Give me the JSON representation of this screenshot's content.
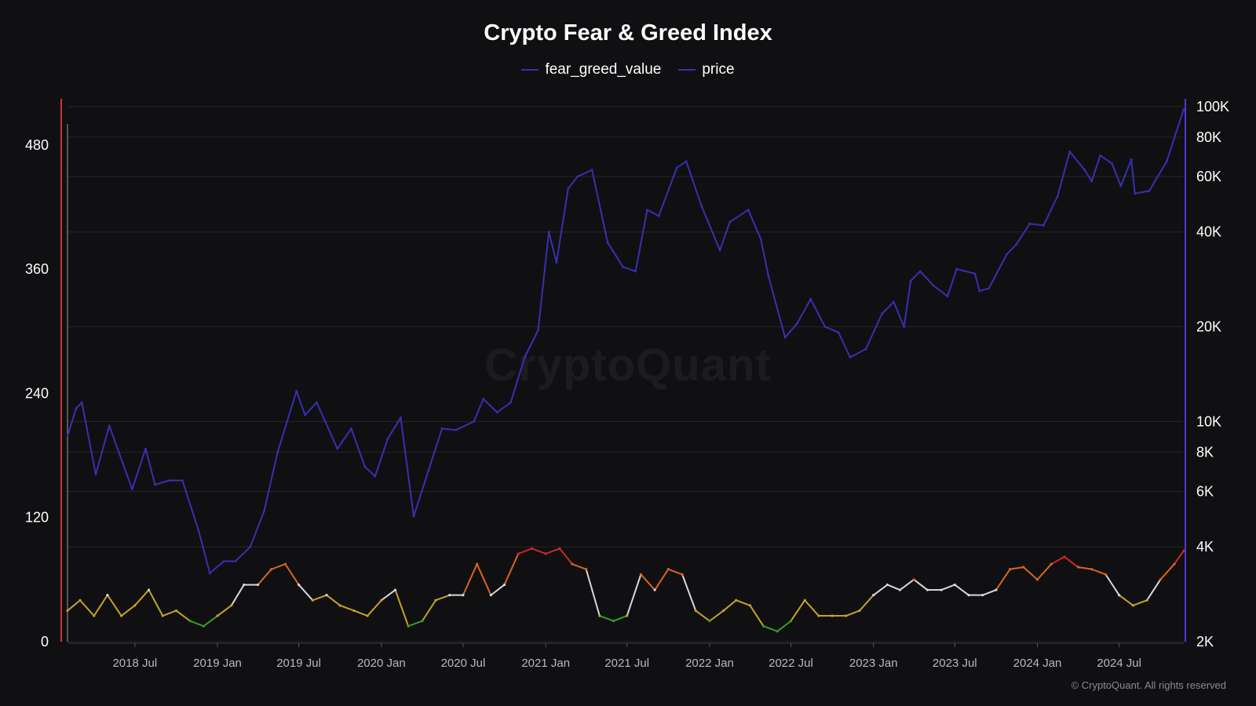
{
  "title": "Crypto Fear & Greed Index",
  "watermark": "CryptoQuant",
  "copyright": "© CryptoQuant. All rights reserved",
  "colors": {
    "background": "#101013",
    "price_line": "#3a2fb0",
    "left_axis": "#d23535",
    "right_axis": "#4a3ad0",
    "gridline": "#26262b",
    "fear_greed_extreme_fear": "#3a9a2a",
    "fear_greed_fear": "#c6a228",
    "fear_greed_neutral": "#d8d8dc",
    "fear_greed_greed": "#d8651e",
    "fear_greed_extreme_greed": "#c9282c"
  },
  "chart_data": {
    "type": "line",
    "x_range": [
      "2018-02-01",
      "2024-11-22"
    ],
    "x_tick_labels": [
      "2018 Jul",
      "2019 Jan",
      "2019 Jul",
      "2020 Jan",
      "2020 Jul",
      "2021 Jan",
      "2021 Jul",
      "2022 Jan",
      "2022 Jul",
      "2023 Jan",
      "2023 Jul",
      "2024 Jan",
      "2024 Jul"
    ],
    "x_tick_dates": [
      "2018-07-01",
      "2019-01-01",
      "2019-07-01",
      "2020-01-01",
      "2020-07-01",
      "2021-01-01",
      "2021-07-01",
      "2022-01-01",
      "2022-07-01",
      "2023-01-01",
      "2023-07-01",
      "2024-01-01",
      "2024-07-01"
    ],
    "y_left": {
      "ticks": [
        0,
        120,
        240,
        360,
        480
      ],
      "tick_labels": [
        "0",
        "120",
        "240",
        "360",
        "480"
      ],
      "range": [
        0,
        517
      ]
    },
    "y_right": {
      "scale": "log",
      "ticks": [
        2000,
        4000,
        6000,
        8000,
        10000,
        20000,
        40000,
        60000,
        80000,
        100000
      ],
      "tick_labels": [
        "2K",
        "4K",
        "6K",
        "8K",
        "10K",
        "20K",
        "40K",
        "60K",
        "80K",
        "100K"
      ],
      "range": [
        2000,
        100000
      ]
    },
    "legend": {
      "placement": "top-center"
    },
    "grid": "horizontal",
    "series": [
      {
        "name": "fear_greed_value",
        "axis": "left",
        "points": [
          [
            "2018-02-01",
            30
          ],
          [
            "2018-03-01",
            40
          ],
          [
            "2018-04-01",
            25
          ],
          [
            "2018-05-01",
            45
          ],
          [
            "2018-06-01",
            25
          ],
          [
            "2018-07-01",
            35
          ],
          [
            "2018-08-01",
            50
          ],
          [
            "2018-09-01",
            25
          ],
          [
            "2018-10-01",
            30
          ],
          [
            "2018-11-01",
            20
          ],
          [
            "2018-12-01",
            15
          ],
          [
            "2019-01-01",
            25
          ],
          [
            "2019-02-01",
            35
          ],
          [
            "2019-03-01",
            55
          ],
          [
            "2019-04-01",
            55
          ],
          [
            "2019-05-01",
            70
          ],
          [
            "2019-06-01",
            75
          ],
          [
            "2019-07-01",
            55
          ],
          [
            "2019-08-01",
            40
          ],
          [
            "2019-09-01",
            45
          ],
          [
            "2019-10-01",
            35
          ],
          [
            "2019-11-01",
            30
          ],
          [
            "2019-12-01",
            25
          ],
          [
            "2020-01-01",
            40
          ],
          [
            "2020-02-01",
            50
          ],
          [
            "2020-03-01",
            15
          ],
          [
            "2020-04-01",
            20
          ],
          [
            "2020-05-01",
            40
          ],
          [
            "2020-06-01",
            45
          ],
          [
            "2020-07-01",
            45
          ],
          [
            "2020-08-01",
            75
          ],
          [
            "2020-09-01",
            45
          ],
          [
            "2020-10-01",
            55
          ],
          [
            "2020-11-01",
            85
          ],
          [
            "2020-12-01",
            90
          ],
          [
            "2021-01-01",
            85
          ],
          [
            "2021-02-01",
            90
          ],
          [
            "2021-03-01",
            75
          ],
          [
            "2021-04-01",
            70
          ],
          [
            "2021-05-01",
            25
          ],
          [
            "2021-06-01",
            20
          ],
          [
            "2021-07-01",
            25
          ],
          [
            "2021-08-01",
            65
          ],
          [
            "2021-09-01",
            50
          ],
          [
            "2021-10-01",
            70
          ],
          [
            "2021-11-01",
            65
          ],
          [
            "2021-12-01",
            30
          ],
          [
            "2022-01-01",
            20
          ],
          [
            "2022-02-01",
            30
          ],
          [
            "2022-03-01",
            40
          ],
          [
            "2022-04-01",
            35
          ],
          [
            "2022-05-01",
            15
          ],
          [
            "2022-06-01",
            10
          ],
          [
            "2022-07-01",
            20
          ],
          [
            "2022-08-01",
            40
          ],
          [
            "2022-09-01",
            25
          ],
          [
            "2022-10-01",
            25
          ],
          [
            "2022-11-01",
            25
          ],
          [
            "2022-12-01",
            30
          ],
          [
            "2023-01-01",
            45
          ],
          [
            "2023-02-01",
            55
          ],
          [
            "2023-03-01",
            50
          ],
          [
            "2023-04-01",
            60
          ],
          [
            "2023-05-01",
            50
          ],
          [
            "2023-06-01",
            50
          ],
          [
            "2023-07-01",
            55
          ],
          [
            "2023-08-01",
            45
          ],
          [
            "2023-09-01",
            45
          ],
          [
            "2023-10-01",
            50
          ],
          [
            "2023-11-01",
            70
          ],
          [
            "2023-12-01",
            72
          ],
          [
            "2024-01-01",
            60
          ],
          [
            "2024-02-01",
            75
          ],
          [
            "2024-03-01",
            82
          ],
          [
            "2024-04-01",
            72
          ],
          [
            "2024-05-01",
            70
          ],
          [
            "2024-06-01",
            65
          ],
          [
            "2024-07-01",
            45
          ],
          [
            "2024-08-01",
            35
          ],
          [
            "2024-09-01",
            40
          ],
          [
            "2024-10-01",
            60
          ],
          [
            "2024-11-01",
            75
          ],
          [
            "2024-11-22",
            88
          ]
        ]
      },
      {
        "name": "price",
        "axis": "right",
        "points": [
          [
            "2018-02-01",
            9000
          ],
          [
            "2018-02-20",
            11000
          ],
          [
            "2018-03-05",
            11500
          ],
          [
            "2018-04-05",
            6800
          ],
          [
            "2018-05-05",
            9700
          ],
          [
            "2018-06-25",
            6100
          ],
          [
            "2018-07-25",
            8200
          ],
          [
            "2018-08-15",
            6300
          ],
          [
            "2018-09-15",
            6500
          ],
          [
            "2018-10-15",
            6500
          ],
          [
            "2018-11-20",
            4500
          ],
          [
            "2018-12-15",
            3300
          ],
          [
            "2019-01-15",
            3600
          ],
          [
            "2019-02-10",
            3600
          ],
          [
            "2019-03-15",
            4000
          ],
          [
            "2019-04-15",
            5200
          ],
          [
            "2019-05-15",
            8000
          ],
          [
            "2019-06-26",
            12500
          ],
          [
            "2019-07-15",
            10500
          ],
          [
            "2019-08-10",
            11500
          ],
          [
            "2019-09-25",
            8200
          ],
          [
            "2019-10-26",
            9500
          ],
          [
            "2019-11-25",
            7200
          ],
          [
            "2019-12-18",
            6700
          ],
          [
            "2020-01-15",
            8800
          ],
          [
            "2020-02-13",
            10300
          ],
          [
            "2020-03-13",
            5000
          ],
          [
            "2020-04-15",
            7000
          ],
          [
            "2020-05-15",
            9500
          ],
          [
            "2020-06-15",
            9400
          ],
          [
            "2020-07-25",
            10000
          ],
          [
            "2020-08-15",
            11800
          ],
          [
            "2020-09-15",
            10700
          ],
          [
            "2020-10-15",
            11500
          ],
          [
            "2020-11-15",
            16000
          ],
          [
            "2020-12-15",
            19500
          ],
          [
            "2021-01-08",
            40000
          ],
          [
            "2021-01-25",
            32000
          ],
          [
            "2021-02-20",
            55000
          ],
          [
            "2021-03-13",
            60000
          ],
          [
            "2021-04-14",
            63000
          ],
          [
            "2021-05-19",
            37000
          ],
          [
            "2021-06-22",
            31000
          ],
          [
            "2021-07-20",
            30000
          ],
          [
            "2021-08-15",
            47000
          ],
          [
            "2021-09-10",
            45000
          ],
          [
            "2021-10-20",
            64000
          ],
          [
            "2021-11-10",
            67000
          ],
          [
            "2021-12-15",
            48000
          ],
          [
            "2022-01-24",
            35000
          ],
          [
            "2022-02-15",
            43000
          ],
          [
            "2022-03-28",
            47000
          ],
          [
            "2022-04-25",
            38000
          ],
          [
            "2022-05-12",
            29000
          ],
          [
            "2022-06-18",
            18500
          ],
          [
            "2022-07-15",
            20500
          ],
          [
            "2022-08-14",
            24500
          ],
          [
            "2022-09-15",
            20000
          ],
          [
            "2022-10-15",
            19200
          ],
          [
            "2022-11-10",
            16000
          ],
          [
            "2022-12-15",
            17000
          ],
          [
            "2023-01-20",
            22000
          ],
          [
            "2023-02-15",
            24000
          ],
          [
            "2023-03-10",
            20000
          ],
          [
            "2023-03-25",
            28000
          ],
          [
            "2023-04-15",
            30000
          ],
          [
            "2023-05-15",
            27000
          ],
          [
            "2023-06-15",
            25000
          ],
          [
            "2023-07-05",
            30500
          ],
          [
            "2023-08-15",
            29500
          ],
          [
            "2023-08-25",
            26000
          ],
          [
            "2023-09-15",
            26500
          ],
          [
            "2023-10-25",
            34000
          ],
          [
            "2023-11-15",
            36500
          ],
          [
            "2023-12-15",
            42500
          ],
          [
            "2024-01-15",
            42000
          ],
          [
            "2024-02-15",
            52000
          ],
          [
            "2024-03-13",
            72000
          ],
          [
            "2024-04-15",
            63000
          ],
          [
            "2024-05-01",
            58000
          ],
          [
            "2024-05-20",
            70000
          ],
          [
            "2024-06-15",
            66000
          ],
          [
            "2024-07-05",
            56000
          ],
          [
            "2024-07-28",
            68000
          ],
          [
            "2024-08-05",
            53000
          ],
          [
            "2024-09-06",
            54000
          ],
          [
            "2024-10-15",
            67000
          ],
          [
            "2024-11-12",
            89000
          ],
          [
            "2024-11-22",
            98000
          ]
        ]
      }
    ]
  }
}
